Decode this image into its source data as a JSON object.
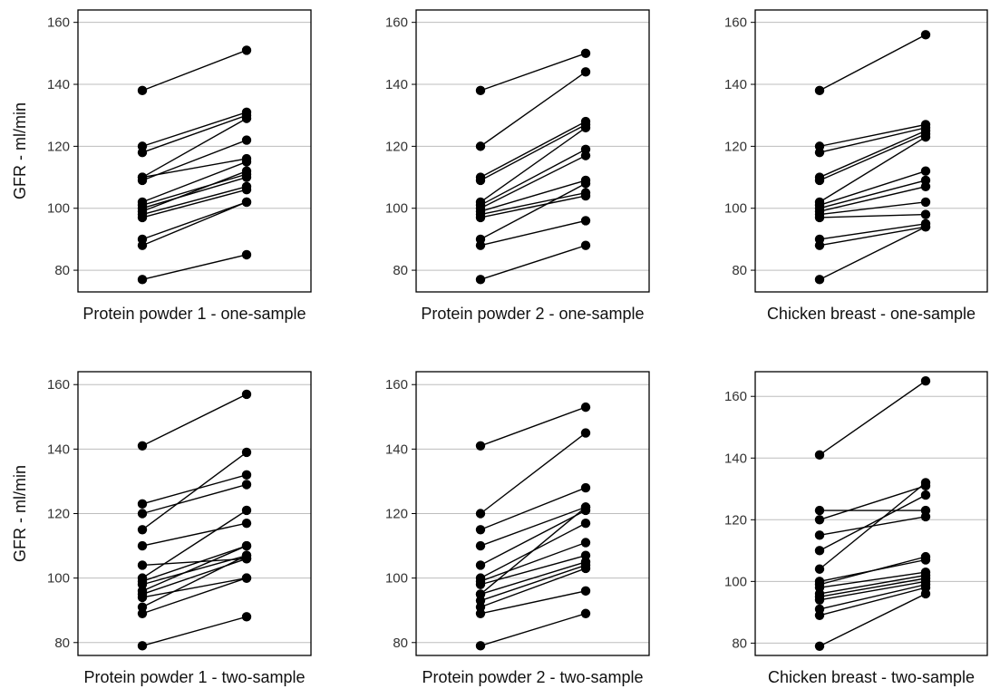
{
  "chart_data": [
    {
      "type": "line",
      "panel": "top-left",
      "xlabel": "Protein powder 1 - one-sample",
      "ylabel": "GFR - ml/min",
      "ylim": [
        73,
        164
      ],
      "yticks": [
        80,
        100,
        120,
        140,
        160
      ],
      "grid": true,
      "pairs": [
        [
          138,
          151
        ],
        [
          120,
          131
        ],
        [
          118,
          130
        ],
        [
          110,
          129
        ],
        [
          110,
          116
        ],
        [
          109,
          122
        ],
        [
          102,
          115
        ],
        [
          101,
          111
        ],
        [
          100,
          110
        ],
        [
          99,
          112
        ],
        [
          98,
          107
        ],
        [
          97,
          106
        ],
        [
          90,
          102
        ],
        [
          88,
          102
        ],
        [
          77,
          85
        ]
      ]
    },
    {
      "type": "line",
      "panel": "top-middle",
      "xlabel": "Protein powder 2 - one-sample",
      "ylabel": "",
      "ylim": [
        73,
        164
      ],
      "yticks": [
        80,
        100,
        120,
        140,
        160
      ],
      "grid": true,
      "pairs": [
        [
          138,
          150
        ],
        [
          120,
          144
        ],
        [
          110,
          128
        ],
        [
          109,
          127
        ],
        [
          102,
          126
        ],
        [
          101,
          119
        ],
        [
          100,
          117
        ],
        [
          99,
          109
        ],
        [
          98,
          105
        ],
        [
          97,
          104
        ],
        [
          90,
          108
        ],
        [
          88,
          96
        ],
        [
          77,
          88
        ]
      ]
    },
    {
      "type": "line",
      "panel": "top-right",
      "xlabel": "Chicken breast - one-sample",
      "ylabel": "",
      "ylim": [
        73,
        164
      ],
      "yticks": [
        80,
        100,
        120,
        140,
        160
      ],
      "grid": true,
      "pairs": [
        [
          138,
          156
        ],
        [
          120,
          127
        ],
        [
          118,
          126
        ],
        [
          110,
          125
        ],
        [
          109,
          124
        ],
        [
          102,
          123
        ],
        [
          101,
          112
        ],
        [
          100,
          109
        ],
        [
          99,
          107
        ],
        [
          98,
          102
        ],
        [
          97,
          98
        ],
        [
          90,
          95
        ],
        [
          88,
          94
        ],
        [
          77,
          94
        ]
      ]
    },
    {
      "type": "line",
      "panel": "bottom-left",
      "xlabel": "Protein powder 1 - two-sample",
      "ylabel": "GFR - ml/min",
      "ylim": [
        76,
        164
      ],
      "yticks": [
        80,
        100,
        120,
        140,
        160
      ],
      "grid": true,
      "pairs": [
        [
          141,
          157
        ],
        [
          123,
          132
        ],
        [
          120,
          129
        ],
        [
          115,
          139
        ],
        [
          110,
          117
        ],
        [
          104,
          106
        ],
        [
          100,
          121
        ],
        [
          99,
          110
        ],
        [
          98,
          107
        ],
        [
          96,
          110
        ],
        [
          95,
          106
        ],
        [
          94,
          100
        ],
        [
          91,
          107
        ],
        [
          89,
          100
        ],
        [
          79,
          88
        ]
      ]
    },
    {
      "type": "line",
      "panel": "bottom-middle",
      "xlabel": "Protein powder 2 - two-sample",
      "ylabel": "",
      "ylim": [
        76,
        164
      ],
      "yticks": [
        80,
        100,
        120,
        140,
        160
      ],
      "grid": true,
      "pairs": [
        [
          141,
          153
        ],
        [
          120,
          145
        ],
        [
          115,
          128
        ],
        [
          110,
          122
        ],
        [
          104,
          121
        ],
        [
          100,
          117
        ],
        [
          99,
          111
        ],
        [
          98,
          107
        ],
        [
          95,
          122
        ],
        [
          95,
          105
        ],
        [
          93,
          104
        ],
        [
          91,
          103
        ],
        [
          89,
          96
        ],
        [
          79,
          89
        ]
      ]
    },
    {
      "type": "line",
      "panel": "bottom-right",
      "xlabel": "Chicken breast - two-sample",
      "ylabel": "",
      "ylim": [
        76,
        168
      ],
      "yticks": [
        80,
        100,
        120,
        140,
        160
      ],
      "grid": true,
      "pairs": [
        [
          141,
          165
        ],
        [
          123,
          123
        ],
        [
          120,
          131
        ],
        [
          115,
          121
        ],
        [
          110,
          128
        ],
        [
          104,
          132
        ],
        [
          100,
          107
        ],
        [
          99,
          108
        ],
        [
          98,
          103
        ],
        [
          96,
          102
        ],
        [
          95,
          101
        ],
        [
          94,
          100
        ],
        [
          91,
          99
        ],
        [
          89,
          98
        ],
        [
          79,
          96
        ]
      ]
    }
  ]
}
